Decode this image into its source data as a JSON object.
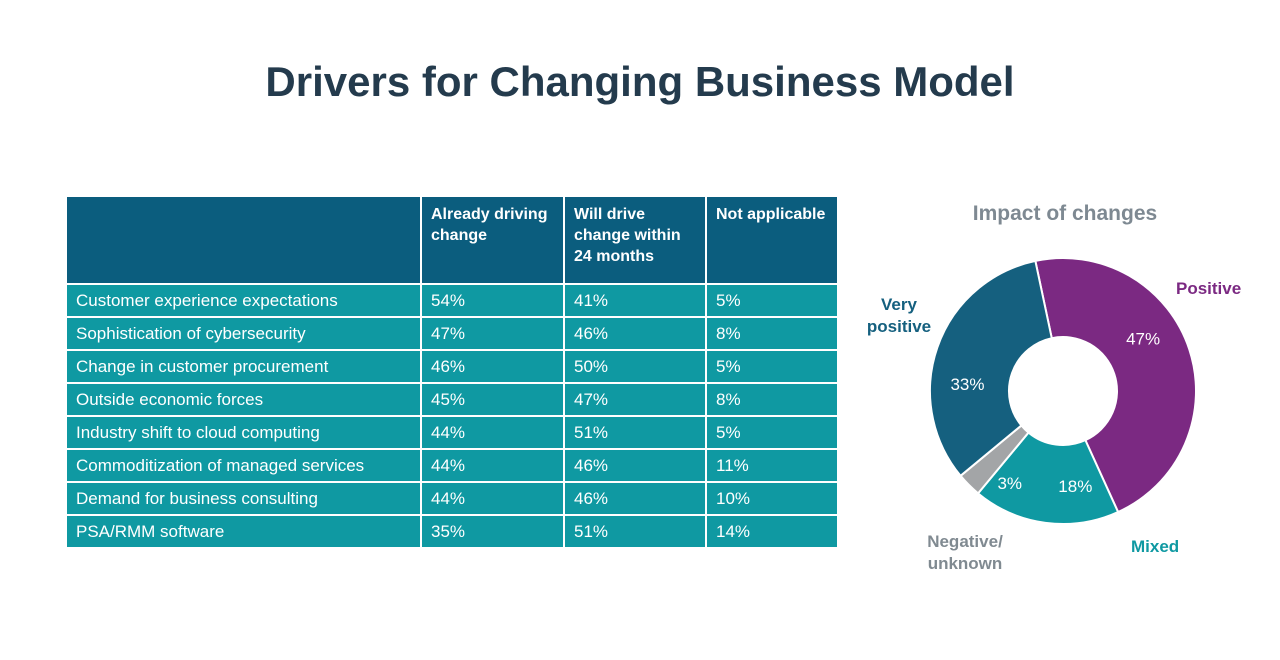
{
  "title": "Drivers for Changing Business Model",
  "colors": {
    "title-text": "#243b4d",
    "table-header-bg": "#0b5d7e",
    "table-body-bg": "#0f99a2",
    "table-text": "#ffffff",
    "chart-title-text": "#7e8992"
  },
  "chart_data": [
    {
      "type": "table",
      "columns": [
        "",
        "Already driving change",
        "Will drive change within 24 months",
        "Not applicable"
      ],
      "rows": [
        {
          "label": "Customer experience expectations",
          "values": [
            "54%",
            "41%",
            "5%"
          ]
        },
        {
          "label": "Sophistication of cybersecurity",
          "values": [
            "47%",
            "46%",
            "8%"
          ]
        },
        {
          "label": "Change in customer procurement",
          "values": [
            "46%",
            "50%",
            "5%"
          ]
        },
        {
          "label": "Outside economic forces",
          "values": [
            "45%",
            "47%",
            "8%"
          ]
        },
        {
          "label": "Industry shift to cloud computing",
          "values": [
            "44%",
            "51%",
            "5%"
          ]
        },
        {
          "label": "Commoditization of managed services",
          "values": [
            "44%",
            "46%",
            "11%"
          ]
        },
        {
          "label": "Demand for business consulting",
          "values": [
            "44%",
            "46%",
            "10%"
          ]
        },
        {
          "label": "PSA/RMM software",
          "values": [
            "35%",
            "51%",
            "14%"
          ]
        }
      ]
    },
    {
      "type": "pie",
      "donut": true,
      "title": "Impact of changes",
      "rotation_deg": -12,
      "direction": "clockwise",
      "legend_position": "callouts",
      "segments": [
        {
          "label": "Positive",
          "value": 47,
          "display": "47%",
          "color": "#7b2982"
        },
        {
          "label": "Mixed",
          "value": 18,
          "display": "18%",
          "color": "#0f99a2"
        },
        {
          "label": "Negative/unknown",
          "value": 3,
          "display": "3%",
          "color": "#a3a5a7",
          "label_color": "#808a91"
        },
        {
          "label": "Very positive",
          "value": 33,
          "display": "33%",
          "color": "#15607f"
        }
      ]
    }
  ],
  "callouts": [
    {
      "seg": 0,
      "lines": [
        "Positive"
      ]
    },
    {
      "seg": 3,
      "lines": [
        "Very",
        "positive"
      ]
    },
    {
      "seg": 2,
      "lines": [
        "Negative/",
        "unknown"
      ]
    },
    {
      "seg": 1,
      "lines": [
        "Mixed"
      ]
    }
  ]
}
